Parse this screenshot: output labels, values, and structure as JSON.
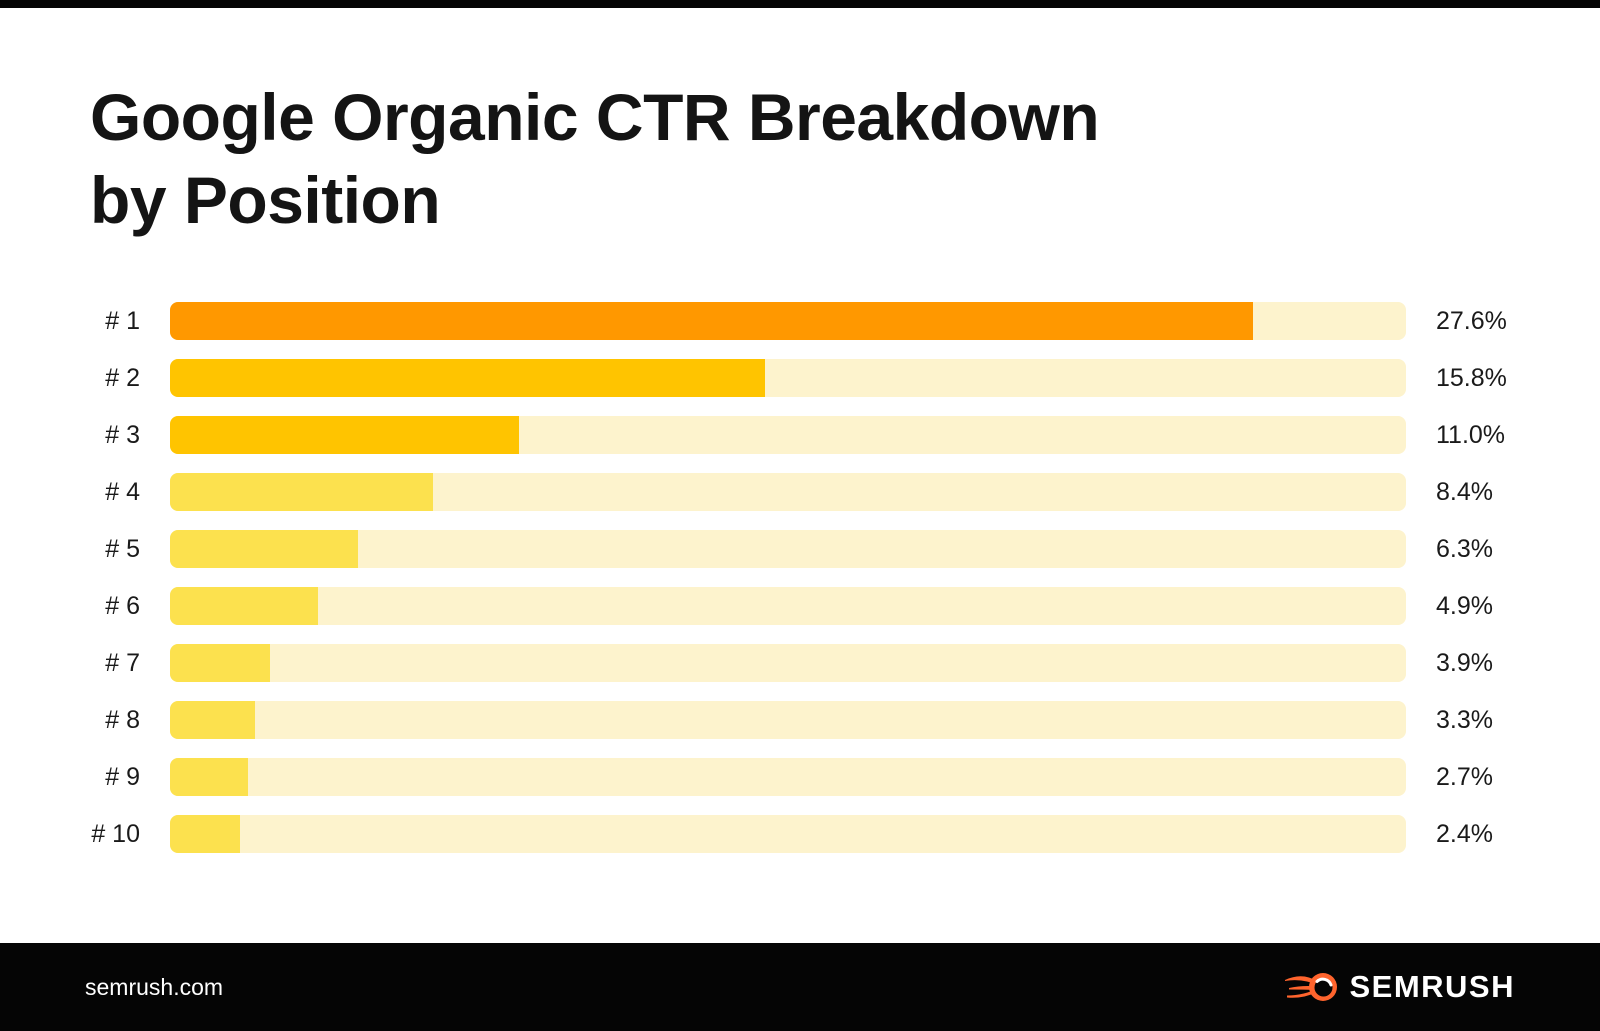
{
  "page": {
    "title_line1": "Google Organic CTR Breakdown",
    "title_line2": "by Position"
  },
  "chart_data": {
    "type": "bar",
    "orientation": "horizontal",
    "title": "Google Organic CTR Breakdown by Position",
    "categories": [
      "# 1",
      "# 2",
      "# 3",
      "# 4",
      "# 5",
      "# 6",
      "# 7",
      "# 8",
      "# 9",
      "# 10"
    ],
    "values": [
      27.6,
      15.8,
      11.0,
      8.4,
      6.3,
      4.9,
      3.9,
      3.3,
      2.7,
      2.4
    ],
    "value_labels": [
      "27.6%",
      "15.8%",
      "11.0%",
      "8.4%",
      "6.3%",
      "4.9%",
      "3.9%",
      "3.3%",
      "2.7%",
      "2.4%"
    ],
    "bar_width_pct_of_track": [
      87.6,
      48.1,
      28.2,
      21.3,
      15.2,
      12.0,
      8.1,
      6.9,
      6.3,
      5.7
    ],
    "bar_colors": [
      "#FF9800",
      "#FFC400",
      "#FFC400",
      "#FCE14E",
      "#FCE14E",
      "#FCE14E",
      "#FCE14E",
      "#FCE14E",
      "#FCE14E",
      "#FCE14E"
    ],
    "track_color": "#FDF3CD",
    "legend": "none",
    "grid": "off",
    "value_label_position": "right-of-track"
  },
  "footer": {
    "site": "semrush.com",
    "brand": "SEMRUSH",
    "brand_icon_color": "#FF642D",
    "background": "#050505"
  }
}
